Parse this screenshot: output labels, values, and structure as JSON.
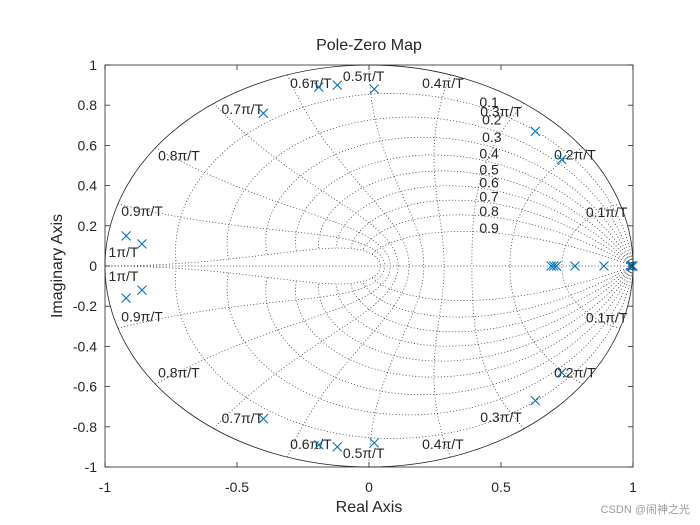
{
  "chart_data": {
    "type": "scatter",
    "title": "Pole-Zero Map",
    "xlabel": "Real Axis",
    "ylabel": "Imaginary Axis",
    "xlim": [
      -1,
      1
    ],
    "ylim": [
      -1,
      1
    ],
    "xticks": [
      -1,
      -0.5,
      0,
      0.5,
      1
    ],
    "xtick_labels": [
      "-1",
      "-0.5",
      "0",
      "0.5",
      "1"
    ],
    "yticks": [
      1,
      0.8,
      0.6,
      0.4,
      0.2,
      0,
      -0.2,
      -0.4,
      -0.6,
      -0.8,
      -1
    ],
    "ytick_labels": [
      "1",
      "0.8",
      "0.6",
      "0.4",
      "0.2",
      "0",
      "-0.2",
      "-0.4",
      "-0.6",
      "-0.8",
      "-1"
    ],
    "grid": "zgrid",
    "damping_values": [
      0.1,
      0.2,
      0.3,
      0.4,
      0.5,
      0.6,
      0.7,
      0.8,
      0.9
    ],
    "damping_labels": [
      "0.1",
      "0.2",
      "0.3",
      "0.4",
      "0.5",
      "0.6",
      "0.7",
      "0.8",
      "0.9"
    ],
    "freq_values": [
      0.1,
      0.2,
      0.3,
      0.4,
      0.5,
      0.6,
      0.7,
      0.8,
      0.9,
      1.0
    ],
    "freq_labels": [
      "0.1π/T",
      "0.2π/T",
      "0.3π/T",
      "0.4π/T",
      "0.5π/T",
      "0.6π/T",
      "0.7π/T",
      "0.8π/T",
      "0.9π/T",
      "1π/T"
    ],
    "series": [
      {
        "marker": "x",
        "color": "#0072BD",
        "points": [
          [
            0.73,
            0.53
          ],
          [
            0.73,
            -0.53
          ],
          [
            0.63,
            0.67
          ],
          [
            0.63,
            -0.67
          ],
          [
            0.02,
            0.88
          ],
          [
            0.02,
            -0.88
          ],
          [
            -0.12,
            0.9
          ],
          [
            -0.12,
            -0.9
          ],
          [
            -0.19,
            0.89
          ],
          [
            -0.19,
            -0.89
          ],
          [
            -0.4,
            0.76
          ],
          [
            -0.4,
            -0.76
          ],
          [
            -0.86,
            0.11
          ],
          [
            -0.86,
            -0.12
          ],
          [
            -0.92,
            0.15
          ],
          [
            -0.92,
            -0.16
          ],
          [
            0.69,
            0.0
          ],
          [
            0.7,
            0.0
          ],
          [
            0.71,
            0.0
          ],
          [
            0.78,
            0.0
          ],
          [
            0.89,
            0.0
          ],
          [
            0.99,
            0.0
          ],
          [
            0.995,
            0.0
          ],
          [
            1.0,
            0.0
          ]
        ]
      }
    ]
  },
  "watermark": "CSDN @闹神之光"
}
